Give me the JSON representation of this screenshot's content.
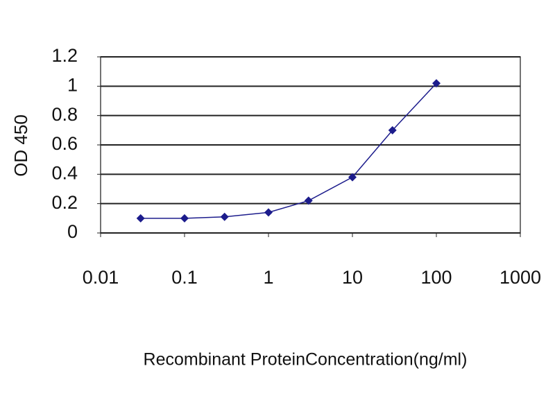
{
  "chart_data": {
    "type": "line",
    "x_label": "Recombinant ProteinConcentration(ng/ml)",
    "y_label": "OD 450",
    "x": [
      0.03,
      0.1,
      0.3,
      1,
      3,
      10,
      30,
      100
    ],
    "values": [
      0.1,
      0.1,
      0.11,
      0.14,
      0.22,
      0.38,
      0.7,
      1.02
    ],
    "color": "#1c1c8c",
    "xscale": "log",
    "xlim": [
      0.01,
      1000
    ],
    "xticks": [
      0.01,
      0.1,
      1,
      10,
      100,
      1000
    ],
    "ylim": [
      0,
      1.2
    ],
    "yticks": [
      0,
      0.2,
      0.4,
      0.6,
      0.8,
      1,
      1.2
    ],
    "grid": true
  }
}
